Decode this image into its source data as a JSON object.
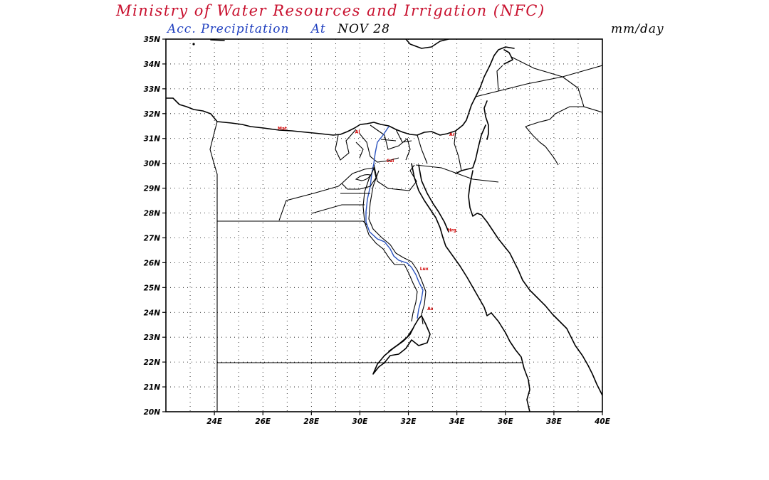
{
  "header": {
    "title": "Ministry  of  Water  Resources  and  Irrigation  (NFC)",
    "subtitle_product": "Acc.  Precipitation",
    "subtitle_at": "At",
    "subtitle_date": "NOV 28",
    "units": "mm/day"
  },
  "colors": {
    "title": "#c8102e",
    "subtitle_blue": "#1f3fbf",
    "subtitle_date": "#000000",
    "river": "#2a52be",
    "city_labels": "#d00000"
  },
  "map": {
    "lon_range": [
      22,
      40
    ],
    "lat_range": [
      20,
      35
    ],
    "grid": "dotted",
    "lat_ticks": [
      "35N",
      "34N",
      "33N",
      "32N",
      "31N",
      "30N",
      "29N",
      "28N",
      "27N",
      "26N",
      "25N",
      "24N",
      "23N",
      "22N",
      "21N",
      "20N"
    ],
    "lon_ticks": [
      "24E",
      "26E",
      "28E",
      "30E",
      "32E",
      "34E",
      "36E",
      "38E",
      "40E"
    ],
    "city_labels": [
      {
        "text": "Mat",
        "lon": 26.8,
        "lat": 31.35
      },
      {
        "text": "Al",
        "lon": 29.9,
        "lat": 31.2
      },
      {
        "text": "Ar",
        "lon": 33.8,
        "lat": 31.1
      },
      {
        "text": "Cai",
        "lon": 31.25,
        "lat": 30.05
      },
      {
        "text": "Hrg",
        "lon": 33.8,
        "lat": 27.25
      },
      {
        "text": "Lux",
        "lon": 32.65,
        "lat": 25.7
      },
      {
        "text": "As",
        "lon": 32.9,
        "lat": 24.1
      }
    ]
  }
}
